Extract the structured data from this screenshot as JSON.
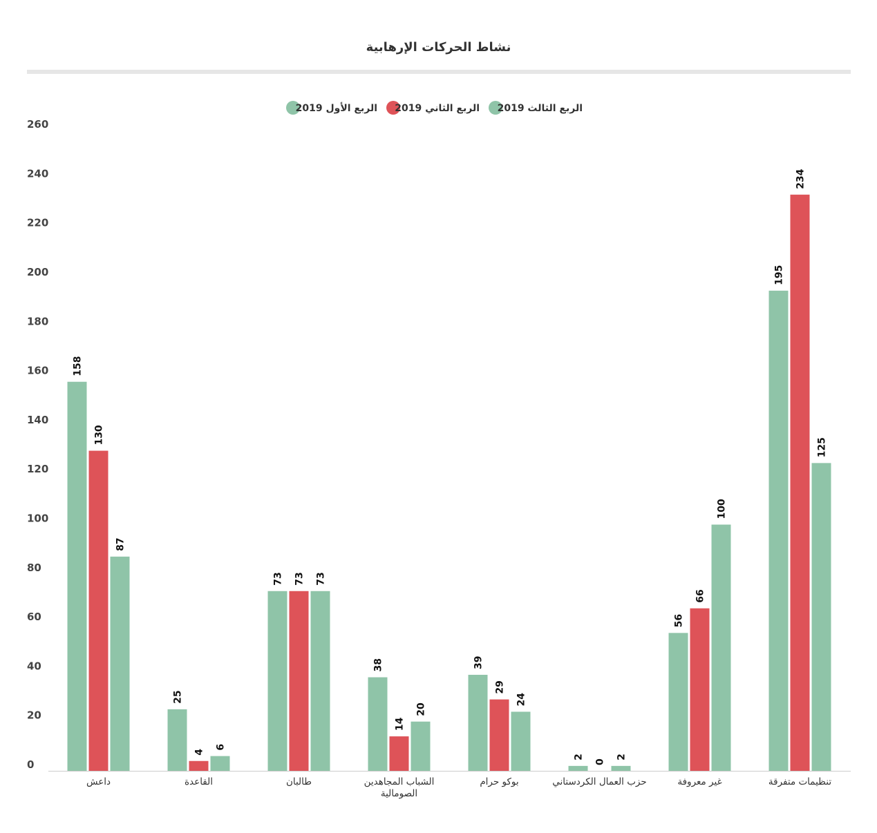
{
  "chart_data": {
    "type": "bar",
    "title": "نشاط الحركات الإرهابية",
    "xlabel": "",
    "ylabel": "",
    "ylim": [
      0,
      260
    ],
    "y_ticks": [
      0,
      20,
      40,
      60,
      80,
      100,
      120,
      140,
      160,
      180,
      200,
      220,
      240,
      260
    ],
    "categories": [
      [
        "داعش"
      ],
      [
        "القاعدة"
      ],
      [
        "طالبان"
      ],
      [
        "الشباب المجاهدين",
        "الصومالية"
      ],
      [
        "بوكو حرام"
      ],
      [
        "حزب العمال الكردستاني"
      ],
      [
        "غير معروفة"
      ],
      [
        "تنظيمات متفرقة"
      ]
    ],
    "series": [
      {
        "name": "الربع الأول 2019",
        "color": "#8fc4a8",
        "values": [
          158,
          25,
          73,
          38,
          39,
          2,
          56,
          195
        ]
      },
      {
        "name": "الربع الثاني 2019",
        "color": "#de5358",
        "values": [
          130,
          4,
          73,
          14,
          29,
          0,
          66,
          234
        ]
      },
      {
        "name": "الربع الثالث 2019",
        "color": "#8fc4a8",
        "values": [
          87,
          6,
          73,
          20,
          24,
          2,
          100,
          125
        ]
      }
    ],
    "legend_position": "top-center",
    "grid": false
  }
}
